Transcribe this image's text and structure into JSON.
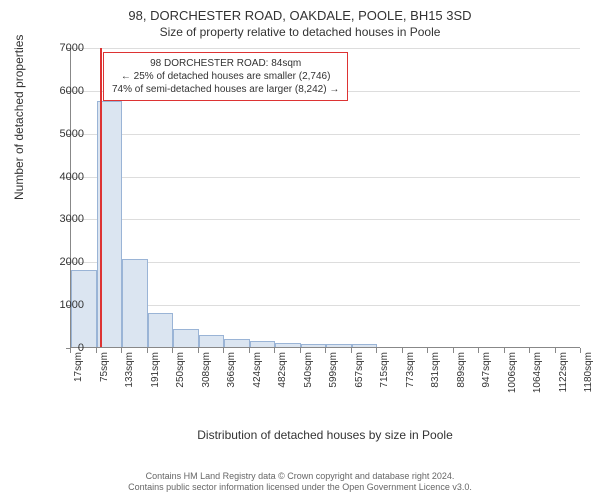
{
  "title": {
    "main": "98, DORCHESTER ROAD, OAKDALE, POOLE, BH15 3SD",
    "sub": "Size of property relative to detached houses in Poole"
  },
  "chart": {
    "type": "histogram",
    "y_axis": {
      "label": "Number of detached properties",
      "min": 0,
      "max": 7000,
      "ticks": [
        0,
        1000,
        2000,
        3000,
        4000,
        5000,
        6000,
        7000
      ],
      "label_fontsize": 12,
      "tick_fontsize": 11
    },
    "x_axis": {
      "label": "Distribution of detached houses by size in Poole",
      "ticks": [
        "17sqm",
        "75sqm",
        "133sqm",
        "191sqm",
        "250sqm",
        "308sqm",
        "366sqm",
        "424sqm",
        "482sqm",
        "540sqm",
        "599sqm",
        "657sqm",
        "715sqm",
        "773sqm",
        "831sqm",
        "889sqm",
        "947sqm",
        "1006sqm",
        "1064sqm",
        "1122sqm",
        "1180sqm"
      ],
      "label_fontsize": 12,
      "tick_fontsize": 10
    },
    "bars": {
      "values": [
        1800,
        5750,
        2050,
        800,
        420,
        270,
        180,
        130,
        100,
        80,
        70,
        60,
        0,
        0,
        0,
        0,
        0,
        0,
        0,
        0
      ],
      "fill_color": "#dbe5f1",
      "border_color": "#9ab4d6"
    },
    "marker": {
      "position_sqm": 84,
      "color": "#dd3333"
    },
    "grid_color": "#dddddd",
    "axis_color": "#888888",
    "background_color": "#ffffff"
  },
  "info_box": {
    "line1": "98 DORCHESTER ROAD: 84sqm",
    "line2": "← 25% of detached houses are smaller (2,746)",
    "line3": "74% of semi-detached houses are larger (8,242) →",
    "border_color": "#dd3333"
  },
  "footer": {
    "line1": "Contains HM Land Registry data © Crown copyright and database right 2024.",
    "line2": "Contains public sector information licensed under the Open Government Licence v3.0."
  }
}
